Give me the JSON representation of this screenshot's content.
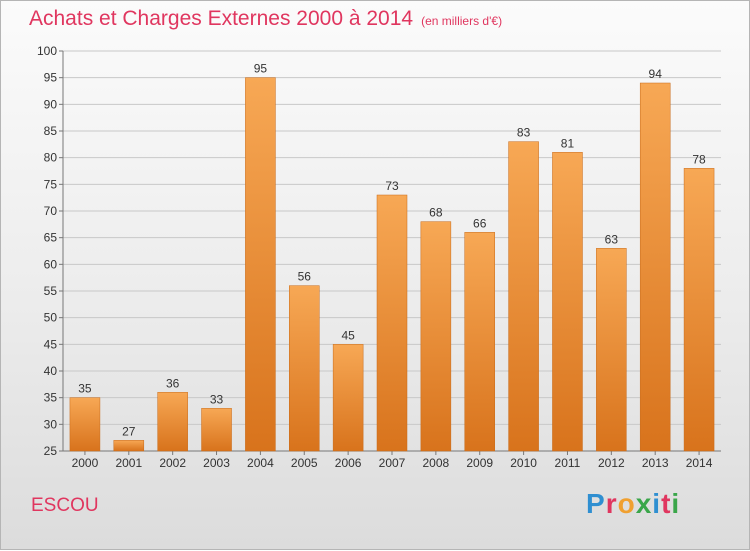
{
  "header": {
    "title": "Achats et Charges Externes 2000 à 2014",
    "unit": "(en milliers d'€)"
  },
  "footer": {
    "location": "ESCOU",
    "logo_letters": [
      {
        "ch": "P",
        "color": "#2f8fd1"
      },
      {
        "ch": "r",
        "color": "#e0365f"
      },
      {
        "ch": "o",
        "color": "#f0a030"
      },
      {
        "ch": "x",
        "color": "#3aa64a"
      },
      {
        "ch": "i",
        "color": "#2f8fd1"
      },
      {
        "ch": "t",
        "color": "#e0365f"
      },
      {
        "ch": "i",
        "color": "#3aa64a"
      }
    ]
  },
  "colors": {
    "bar_light": "#f7a855",
    "bar_dark": "#d8731c",
    "grid": "#c8c8c8",
    "text_accent": "#e0365f"
  },
  "chart_data": {
    "type": "bar",
    "title": "Achats et Charges Externes 2000 à 2014",
    "subtitle": "(en milliers d'€)",
    "categories": [
      "2000",
      "2001",
      "2002",
      "2003",
      "2004",
      "2005",
      "2006",
      "2007",
      "2008",
      "2009",
      "2010",
      "2011",
      "2012",
      "2013",
      "2014"
    ],
    "values": [
      35,
      27,
      36,
      33,
      95,
      56,
      45,
      73,
      68,
      66,
      83,
      81,
      63,
      94,
      78
    ],
    "ylim": [
      25,
      100
    ],
    "yticks": [
      25,
      30,
      35,
      40,
      45,
      50,
      55,
      60,
      65,
      70,
      75,
      80,
      85,
      90,
      95,
      100
    ],
    "grid": true,
    "xlabel": "",
    "ylabel": ""
  }
}
